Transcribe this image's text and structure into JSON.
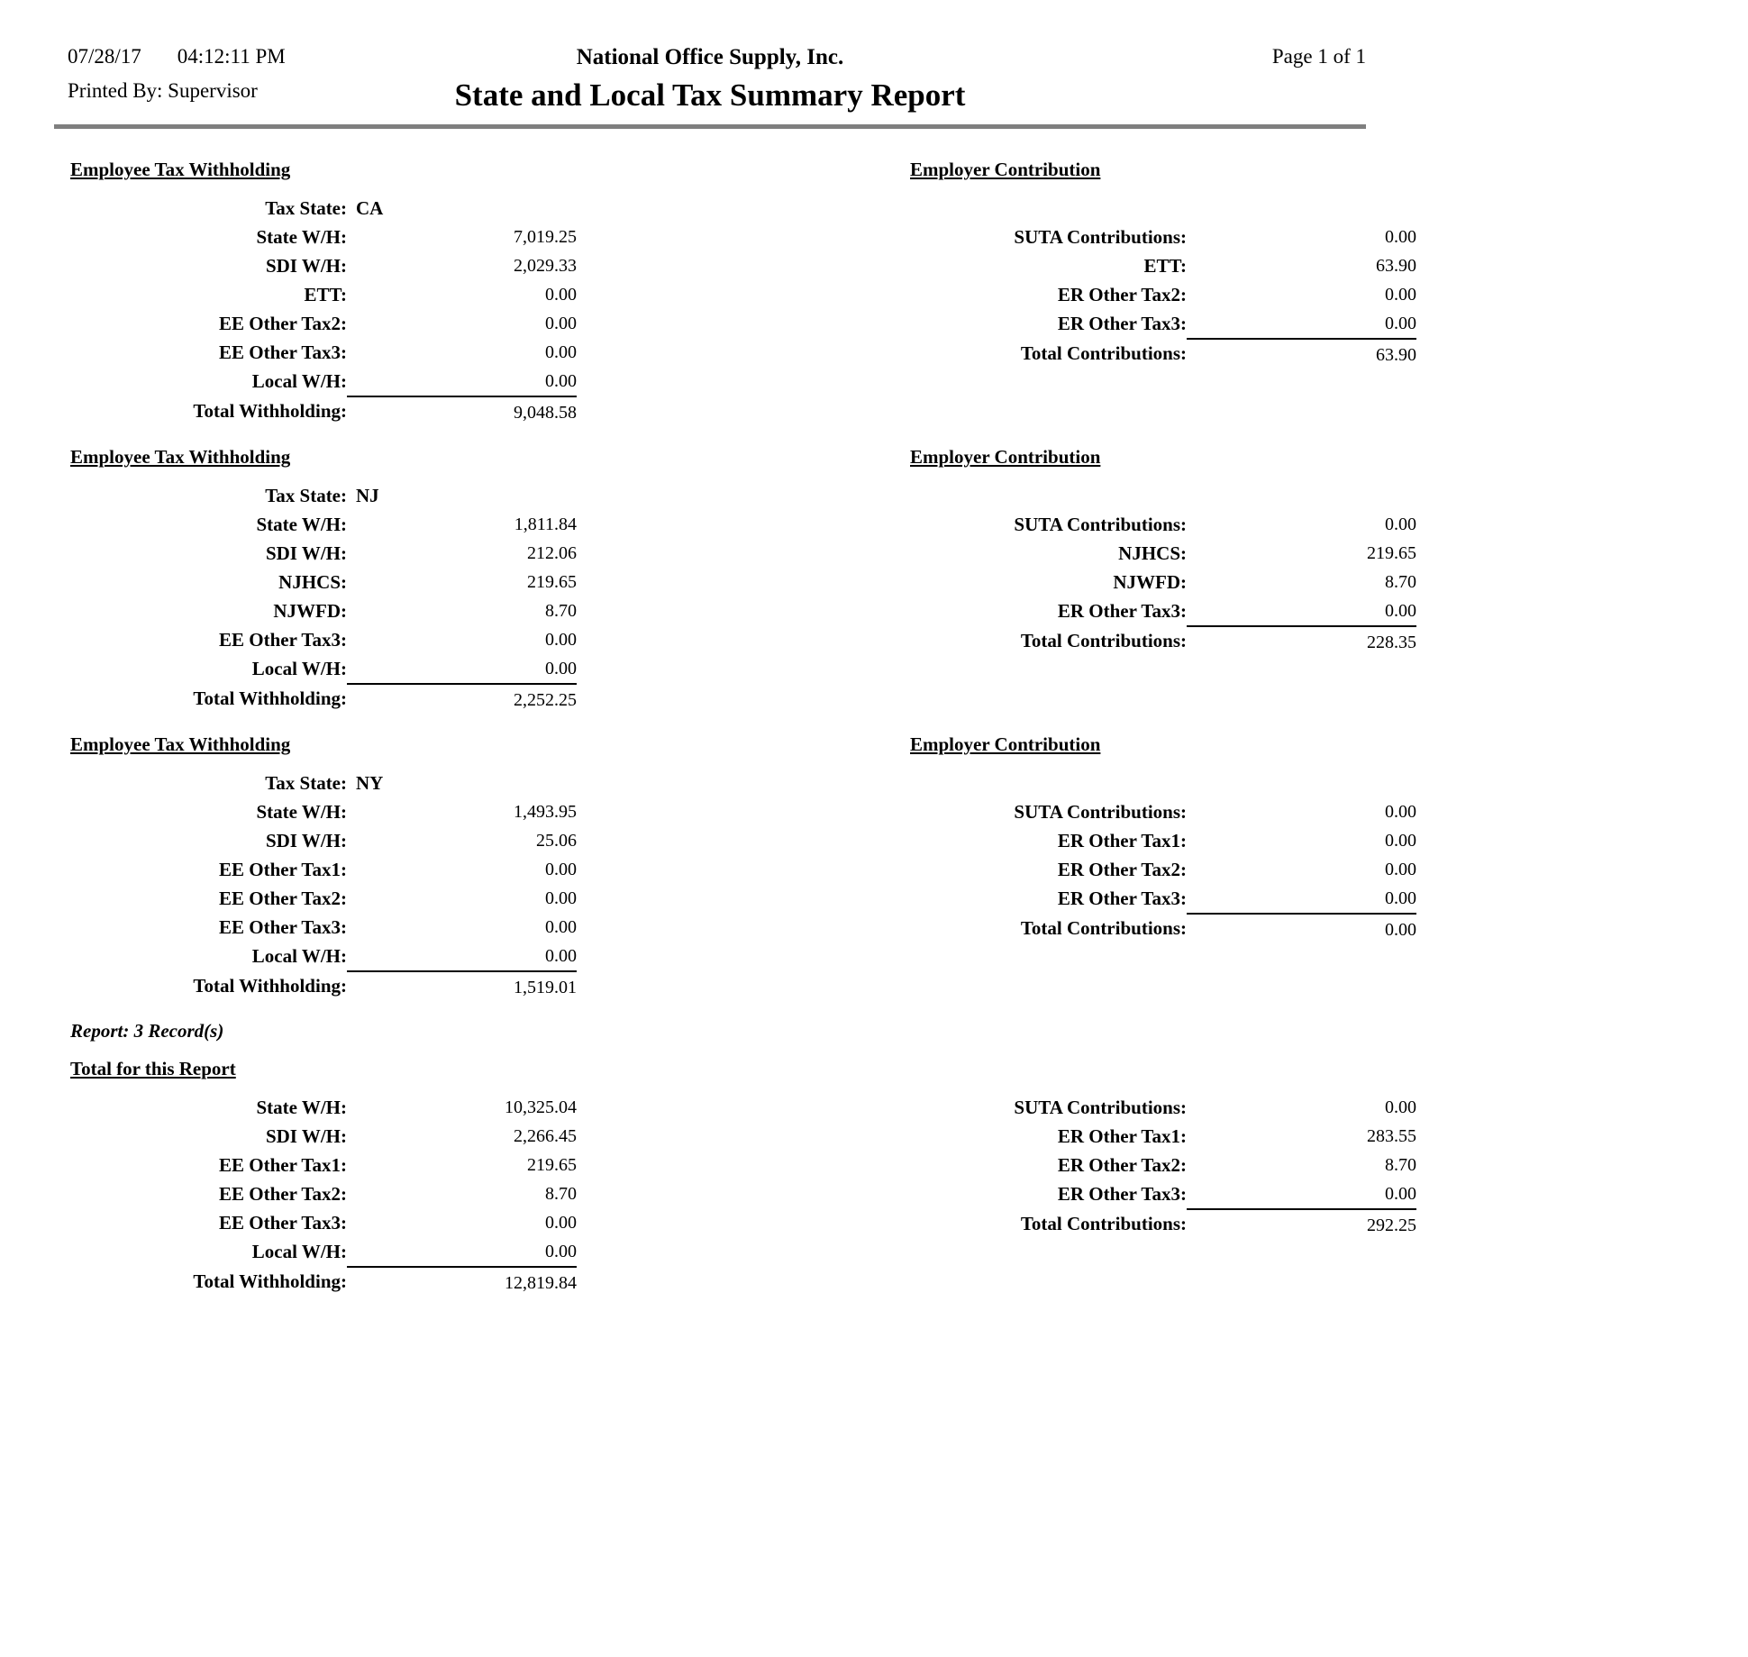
{
  "header": {
    "date": "07/28/17",
    "time": "04:12:11 PM",
    "printed_by": "Printed By: Supervisor",
    "company": "National Office Supply, Inc.",
    "title": "State and Local Tax Summary Report",
    "page": "Page 1 of 1"
  },
  "sections": [
    {
      "employee": {
        "heading": "Employee Tax Withholding",
        "tax_state_label": "Tax State:",
        "tax_state": "CA",
        "rows": [
          {
            "label": "State W/H:",
            "value": "7,019.25"
          },
          {
            "label": "SDI W/H:",
            "value": "2,029.33"
          },
          {
            "label": "ETT:",
            "value": "0.00"
          },
          {
            "label": "EE Other Tax2:",
            "value": "0.00"
          },
          {
            "label": "EE Other Tax3:",
            "value": "0.00"
          },
          {
            "label": "Local W/H:",
            "value": "0.00"
          }
        ],
        "total": {
          "label": "Total Withholding:",
          "value": "9,048.58"
        }
      },
      "employer": {
        "heading": "Employer Contribution",
        "rows": [
          {
            "label": "SUTA Contributions:",
            "value": "0.00"
          },
          {
            "label": "ETT:",
            "value": "63.90"
          },
          {
            "label": "ER Other Tax2:",
            "value": "0.00"
          },
          {
            "label": "ER Other Tax3:",
            "value": "0.00"
          }
        ],
        "total": {
          "label": "Total Contributions:",
          "value": "63.90"
        }
      }
    },
    {
      "employee": {
        "heading": "Employee Tax Withholding",
        "tax_state_label": "Tax State:",
        "tax_state": "NJ",
        "rows": [
          {
            "label": "State W/H:",
            "value": "1,811.84"
          },
          {
            "label": "SDI W/H:",
            "value": "212.06"
          },
          {
            "label": "NJHCS:",
            "value": "219.65"
          },
          {
            "label": "NJWFD:",
            "value": "8.70"
          },
          {
            "label": "EE Other Tax3:",
            "value": "0.00"
          },
          {
            "label": "Local W/H:",
            "value": "0.00"
          }
        ],
        "total": {
          "label": "Total Withholding:",
          "value": "2,252.25"
        }
      },
      "employer": {
        "heading": "Employer Contribution",
        "rows": [
          {
            "label": "SUTA Contributions:",
            "value": "0.00"
          },
          {
            "label": "NJHCS:",
            "value": "219.65"
          },
          {
            "label": "NJWFD:",
            "value": "8.70"
          },
          {
            "label": "ER Other Tax3:",
            "value": "0.00"
          }
        ],
        "total": {
          "label": "Total Contributions:",
          "value": "228.35"
        }
      }
    },
    {
      "employee": {
        "heading": "Employee Tax Withholding",
        "tax_state_label": "Tax State:",
        "tax_state": "NY",
        "rows": [
          {
            "label": "State W/H:",
            "value": "1,493.95"
          },
          {
            "label": "SDI W/H:",
            "value": "25.06"
          },
          {
            "label": "EE Other Tax1:",
            "value": "0.00"
          },
          {
            "label": "EE Other Tax2:",
            "value": "0.00"
          },
          {
            "label": "EE Other Tax3:",
            "value": "0.00"
          },
          {
            "label": "Local W/H:",
            "value": "0.00"
          }
        ],
        "total": {
          "label": "Total Withholding:",
          "value": "1,519.01"
        }
      },
      "employer": {
        "heading": "Employer Contribution",
        "rows": [
          {
            "label": "SUTA Contributions:",
            "value": "0.00"
          },
          {
            "label": "ER Other Tax1:",
            "value": "0.00"
          },
          {
            "label": "ER Other Tax2:",
            "value": "0.00"
          },
          {
            "label": "ER Other Tax3:",
            "value": "0.00"
          }
        ],
        "total": {
          "label": "Total Contributions:",
          "value": "0.00"
        }
      }
    }
  ],
  "report_note": "Report: 3 Record(s)",
  "totals": {
    "heading": "Total for this Report",
    "employee": {
      "rows": [
        {
          "label": "State W/H:",
          "value": "10,325.04"
        },
        {
          "label": "SDI W/H:",
          "value": "2,266.45"
        },
        {
          "label": "EE Other Tax1:",
          "value": "219.65"
        },
        {
          "label": "EE Other Tax2:",
          "value": "8.70"
        },
        {
          "label": "EE Other Tax3:",
          "value": "0.00"
        },
        {
          "label": "Local W/H:",
          "value": "0.00"
        }
      ],
      "total": {
        "label": "Total Withholding:",
        "value": "12,819.84"
      }
    },
    "employer": {
      "rows": [
        {
          "label": "SUTA Contributions:",
          "value": "0.00"
        },
        {
          "label": "ER Other Tax1:",
          "value": "283.55"
        },
        {
          "label": "ER Other Tax2:",
          "value": "8.70"
        },
        {
          "label": "ER Other Tax3:",
          "value": "0.00"
        }
      ],
      "total": {
        "label": "Total Contributions:",
        "value": "292.25"
      }
    }
  }
}
